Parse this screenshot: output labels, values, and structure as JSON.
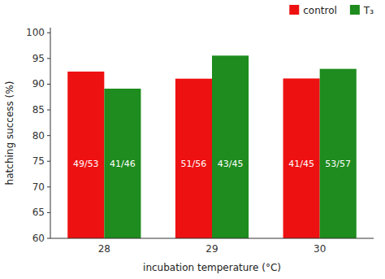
{
  "chart_data": {
    "type": "bar",
    "categories": [
      "28",
      "29",
      "30"
    ],
    "series": [
      {
        "name": "control",
        "color": "#ee1111",
        "values": [
          92.45,
          91.07,
          91.11
        ],
        "value_labels": [
          "49/53",
          "51/56",
          "41/45"
        ]
      },
      {
        "name": "T₃",
        "color": "#1e8c1e",
        "values": [
          89.13,
          95.56,
          92.98
        ],
        "value_labels": [
          "41/46",
          "43/45",
          "53/57"
        ]
      }
    ],
    "xlabel": "incubation temperature (°C)",
    "ylabel": "hatching success (%)",
    "ylim": [
      60,
      101
    ],
    "yticks": [
      60,
      65,
      70,
      75,
      80,
      85,
      90,
      95,
      100
    ],
    "data_labels": true,
    "legend": "upper right",
    "grid": false
  }
}
